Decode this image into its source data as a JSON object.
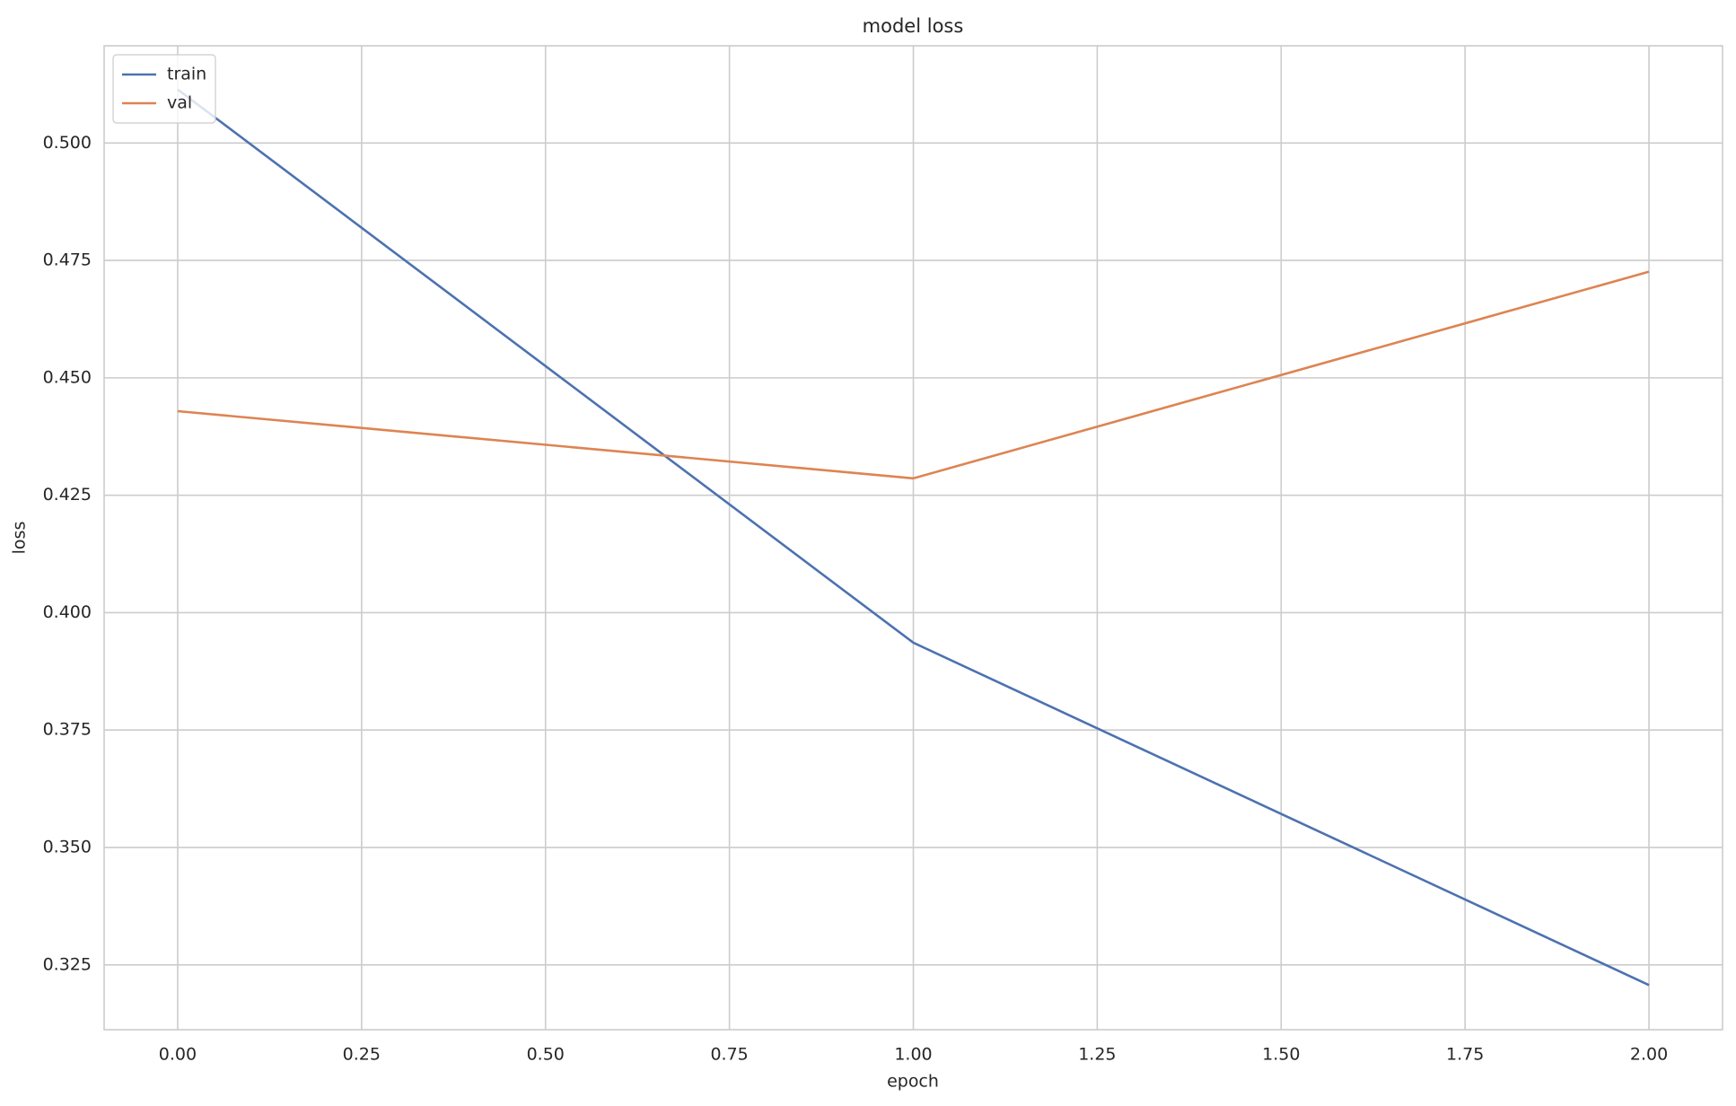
{
  "chart_data": {
    "type": "line",
    "title": "model loss",
    "x_label": "epoch",
    "y_label": "loss",
    "x": [
      0,
      1,
      2
    ],
    "series": [
      {
        "name": "train",
        "color": "#4c72b0",
        "values": [
          0.5114,
          0.3936,
          0.3207
        ]
      },
      {
        "name": "val",
        "color": "#dd8452",
        "values": [
          0.4429,
          0.4286,
          0.4726
        ]
      }
    ],
    "xlim": [
      -0.1,
      2.1
    ],
    "xticks": [
      {
        "value": 0,
        "label": "0.00"
      },
      {
        "value": 0.25,
        "label": "0.25"
      },
      {
        "value": 0.5,
        "label": "0.50"
      },
      {
        "value": 0.75,
        "label": "0.75"
      },
      {
        "value": 1,
        "label": "1.00"
      },
      {
        "value": 1.25,
        "label": "1.25"
      },
      {
        "value": 1.5,
        "label": "1.50"
      },
      {
        "value": 1.75,
        "label": "1.75"
      },
      {
        "value": 2,
        "label": "2.00"
      }
    ],
    "ylim": [
      0.3112,
      0.5207
    ],
    "yticks": [
      0.325,
      {
        "value": 0.35,
        "label": "0.350"
      },
      0.375,
      {
        "value": 0.4,
        "label": "0.400"
      },
      0.425,
      {
        "value": 0.45,
        "label": "0.450"
      },
      0.475,
      {
        "value": 0.5,
        "label": "0.500"
      }
    ],
    "grid": true,
    "legend_position": "upper-left"
  }
}
